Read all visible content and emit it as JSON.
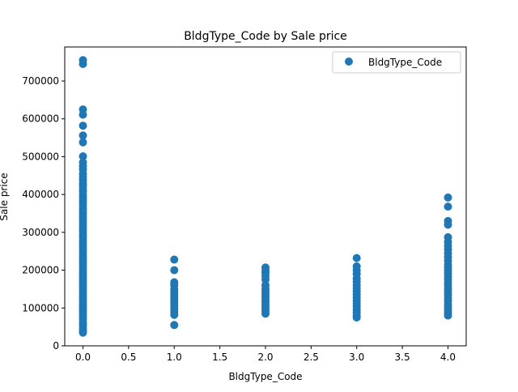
{
  "chart_data": {
    "type": "scatter",
    "title": "BldgType_Code by Sale price",
    "xlabel": "BldgType_Code",
    "ylabel": "Sale price",
    "xlim": [
      -0.2,
      4.2
    ],
    "ylim": [
      0,
      790000
    ],
    "xticks": [
      0.0,
      0.5,
      1.0,
      1.5,
      2.0,
      2.5,
      3.0,
      3.5,
      4.0
    ],
    "xtick_labels": [
      "0.0",
      "0.5",
      "1.0",
      "1.5",
      "2.0",
      "2.5",
      "3.0",
      "3.5",
      "4.0"
    ],
    "yticks": [
      0,
      100000,
      200000,
      300000,
      400000,
      500000,
      600000,
      700000
    ],
    "ytick_labels": [
      "0",
      "100000",
      "200000",
      "300000",
      "400000",
      "500000",
      "600000",
      "700000"
    ],
    "grid": false,
    "legend_position": "top-right",
    "color": "#1f77b4",
    "series": [
      {
        "name": "BldgType_Code",
        "points": [
          [
            0,
            755000
          ],
          [
            0,
            745000
          ],
          [
            0,
            625000
          ],
          [
            0,
            611000
          ],
          [
            0,
            582000
          ],
          [
            0,
            556000
          ],
          [
            0,
            538000
          ],
          [
            0,
            501000
          ],
          [
            0,
            485000
          ],
          [
            0,
            475000
          ],
          [
            0,
            466000
          ],
          [
            0,
            455000
          ],
          [
            0,
            446000
          ],
          [
            0,
            438000
          ],
          [
            0,
            430000
          ],
          [
            0,
            423000
          ],
          [
            0,
            415000
          ],
          [
            0,
            408000
          ],
          [
            0,
            400000
          ],
          [
            0,
            392000
          ],
          [
            0,
            385000
          ],
          [
            0,
            378000
          ],
          [
            0,
            370000
          ],
          [
            0,
            362000
          ],
          [
            0,
            355000
          ],
          [
            0,
            348000
          ],
          [
            0,
            340000
          ],
          [
            0,
            333000
          ],
          [
            0,
            325000
          ],
          [
            0,
            318000
          ],
          [
            0,
            310000
          ],
          [
            0,
            303000
          ],
          [
            0,
            295000
          ],
          [
            0,
            288000
          ],
          [
            0,
            280000
          ],
          [
            0,
            273000
          ],
          [
            0,
            265000
          ],
          [
            0,
            258000
          ],
          [
            0,
            250000
          ],
          [
            0,
            243000
          ],
          [
            0,
            235000
          ],
          [
            0,
            228000
          ],
          [
            0,
            220000
          ],
          [
            0,
            213000
          ],
          [
            0,
            205000
          ],
          [
            0,
            198000
          ],
          [
            0,
            190000
          ],
          [
            0,
            183000
          ],
          [
            0,
            175000
          ],
          [
            0,
            168000
          ],
          [
            0,
            160000
          ],
          [
            0,
            153000
          ],
          [
            0,
            145000
          ],
          [
            0,
            138000
          ],
          [
            0,
            130000
          ],
          [
            0,
            123000
          ],
          [
            0,
            115000
          ],
          [
            0,
            108000
          ],
          [
            0,
            100000
          ],
          [
            0,
            93000
          ],
          [
            0,
            85000
          ],
          [
            0,
            78000
          ],
          [
            0,
            70000
          ],
          [
            0,
            62000
          ],
          [
            0,
            55000
          ],
          [
            0,
            47000
          ],
          [
            0,
            40000
          ],
          [
            0,
            35000
          ],
          [
            1,
            228000
          ],
          [
            1,
            200000
          ],
          [
            1,
            168000
          ],
          [
            1,
            160000
          ],
          [
            1,
            150000
          ],
          [
            1,
            143000
          ],
          [
            1,
            135000
          ],
          [
            1,
            128000
          ],
          [
            1,
            120000
          ],
          [
            1,
            113000
          ],
          [
            1,
            105000
          ],
          [
            1,
            98000
          ],
          [
            1,
            90000
          ],
          [
            1,
            82000
          ],
          [
            1,
            55000
          ],
          [
            2,
            207000
          ],
          [
            2,
            200000
          ],
          [
            2,
            193000
          ],
          [
            2,
            185000
          ],
          [
            2,
            175000
          ],
          [
            2,
            160000
          ],
          [
            2,
            150000
          ],
          [
            2,
            143000
          ],
          [
            2,
            136000
          ],
          [
            2,
            129000
          ],
          [
            2,
            122000
          ],
          [
            2,
            115000
          ],
          [
            2,
            108000
          ],
          [
            2,
            100000
          ],
          [
            2,
            93000
          ],
          [
            2,
            85000
          ],
          [
            3,
            232000
          ],
          [
            3,
            210000
          ],
          [
            3,
            200000
          ],
          [
            3,
            190000
          ],
          [
            3,
            178000
          ],
          [
            3,
            170000
          ],
          [
            3,
            160000
          ],
          [
            3,
            152000
          ],
          [
            3,
            144000
          ],
          [
            3,
            136000
          ],
          [
            3,
            128000
          ],
          [
            3,
            120000
          ],
          [
            3,
            112000
          ],
          [
            3,
            104000
          ],
          [
            3,
            96000
          ],
          [
            3,
            88000
          ],
          [
            3,
            80000
          ],
          [
            3,
            75000
          ],
          [
            4,
            392000
          ],
          [
            4,
            368000
          ],
          [
            4,
            330000
          ],
          [
            4,
            320000
          ],
          [
            4,
            287000
          ],
          [
            4,
            275000
          ],
          [
            4,
            265000
          ],
          [
            4,
            255000
          ],
          [
            4,
            245000
          ],
          [
            4,
            235000
          ],
          [
            4,
            225000
          ],
          [
            4,
            215000
          ],
          [
            4,
            207000
          ],
          [
            4,
            199000
          ],
          [
            4,
            191000
          ],
          [
            4,
            183000
          ],
          [
            4,
            175000
          ],
          [
            4,
            167000
          ],
          [
            4,
            159000
          ],
          [
            4,
            151000
          ],
          [
            4,
            143000
          ],
          [
            4,
            135000
          ],
          [
            4,
            127000
          ],
          [
            4,
            119000
          ],
          [
            4,
            111000
          ],
          [
            4,
            103000
          ],
          [
            4,
            95000
          ],
          [
            4,
            87000
          ],
          [
            4,
            80000
          ]
        ]
      }
    ]
  }
}
